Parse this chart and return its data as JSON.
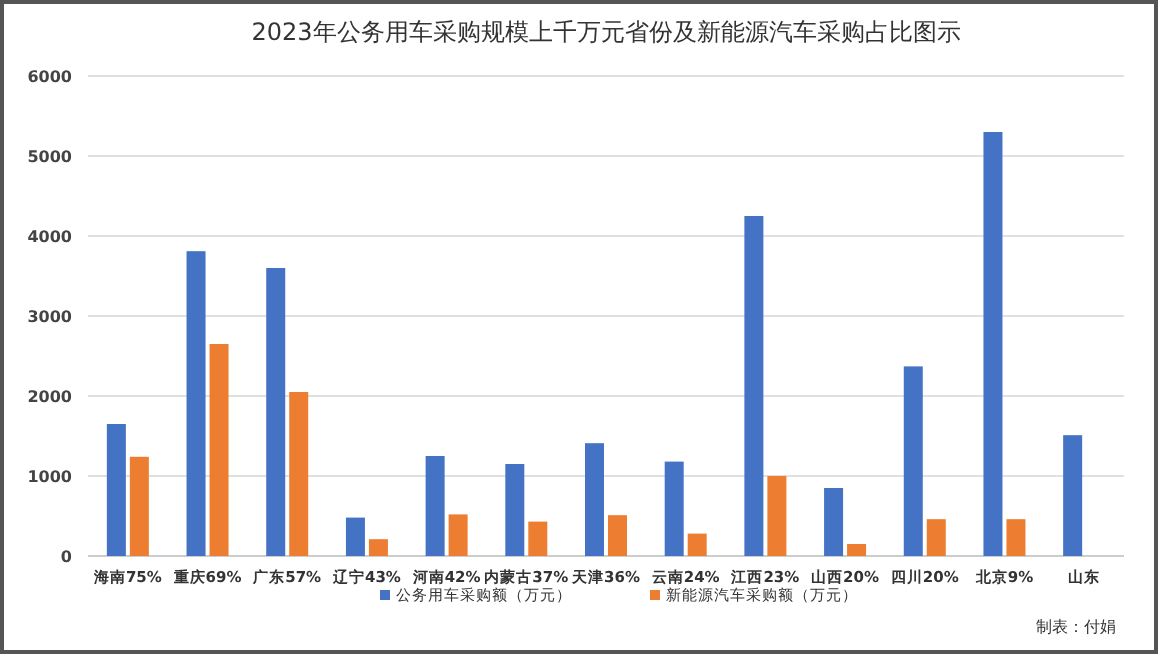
{
  "chart_data": {
    "type": "bar",
    "title": "2023年公务用车采购规模上千万元省份及新能源汽车采购占比图示",
    "categories": [
      "海南75%",
      "重庆69%",
      "广东57%",
      "辽宁43%",
      "河南42%",
      "内蒙古37%",
      "天津36%",
      "云南24%",
      "江西23%",
      "山西20%",
      "四川20%",
      "北京9%",
      "山东"
    ],
    "series": [
      {
        "name": "公务用车采购额（万元）",
        "color": "#4472c4",
        "values": [
          1650,
          3810,
          3600,
          480,
          1250,
          1150,
          1410,
          1180,
          4250,
          850,
          2370,
          5300,
          1510
        ]
      },
      {
        "name": "新能源汽车采购额（万元）",
        "color": "#ed7d31",
        "values": [
          1240,
          2650,
          2050,
          210,
          520,
          430,
          510,
          280,
          1000,
          150,
          460,
          460,
          null
        ]
      }
    ],
    "ylim": [
      0,
      6000
    ],
    "yticks": [
      0,
      1000,
      2000,
      3000,
      4000,
      5000,
      6000
    ],
    "grid": "y",
    "legend": "bottom",
    "annotations": [
      "制表：付娟"
    ]
  }
}
